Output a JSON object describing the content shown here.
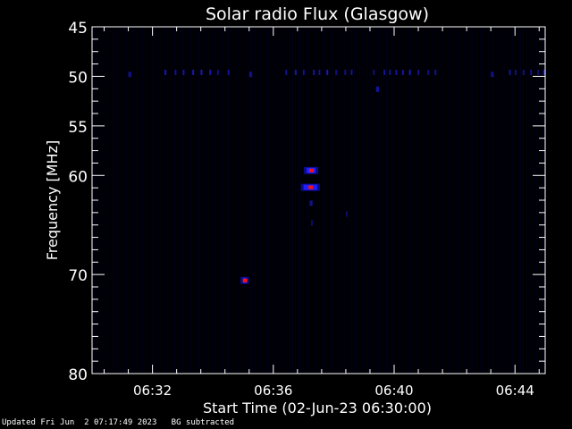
{
  "chart_data": {
    "type": "heatmap",
    "title": "Solar radio Flux (Glasgow)",
    "xlabel": "Start Time (02-Jun-23 06:30:00)",
    "ylabel": "Frequency [MHz]",
    "x_unit": "minutes after 06:30:00",
    "xlim": [
      0,
      15
    ],
    "ylim": [
      80,
      45
    ],
    "x_ticks": [
      "06:32",
      "06:36",
      "06:40",
      "06:44"
    ],
    "x_tick_minutes": [
      2,
      6,
      10,
      14
    ],
    "y_ticks": [
      45,
      50,
      55,
      60,
      70,
      80
    ],
    "y_tick_labels": [
      "45",
      "50",
      "55",
      "60",
      "70",
      "80"
    ],
    "colormap": [
      "#000000",
      "#0000ff",
      "#ff0000"
    ],
    "features": [
      {
        "t_start": 1.2,
        "t_end": 1.3,
        "freq": 49.8,
        "intensity": 0.5
      },
      {
        "t_start": 2.4,
        "t_end": 4.7,
        "freq": 49.6,
        "intensity": 0.7
      },
      {
        "t_start": 5.2,
        "t_end": 5.3,
        "freq": 49.8,
        "intensity": 0.5
      },
      {
        "t_start": 6.4,
        "t_end": 8.6,
        "freq": 49.6,
        "intensity": 0.7
      },
      {
        "t_start": 9.3,
        "t_end": 11.4,
        "freq": 49.6,
        "intensity": 0.7
      },
      {
        "t_start": 9.4,
        "t_end": 9.5,
        "freq": 51.3,
        "intensity": 0.6
      },
      {
        "t_start": 13.2,
        "t_end": 13.3,
        "freq": 49.8,
        "intensity": 0.5
      },
      {
        "t_start": 13.8,
        "t_end": 15.0,
        "freq": 49.6,
        "intensity": 0.7
      },
      {
        "t_start": 7.1,
        "t_end": 7.4,
        "freq": 59.5,
        "intensity": 1.0
      },
      {
        "t_start": 7.0,
        "t_end": 7.45,
        "freq": 61.2,
        "intensity": 1.0
      },
      {
        "t_start": 7.2,
        "t_end": 7.3,
        "freq": 62.8,
        "intensity": 0.5
      },
      {
        "t_start": 7.25,
        "t_end": 7.3,
        "freq": 64.8,
        "intensity": 0.4
      },
      {
        "t_start": 8.4,
        "t_end": 8.45,
        "freq": 63.9,
        "intensity": 0.4
      },
      {
        "t_start": 5.0,
        "t_end": 5.1,
        "freq": 70.6,
        "intensity": 1.0
      }
    ]
  },
  "footer": {
    "updated": "Updated Fri Jun  2 07:17:49 2023",
    "note": "BG subtracted"
  }
}
